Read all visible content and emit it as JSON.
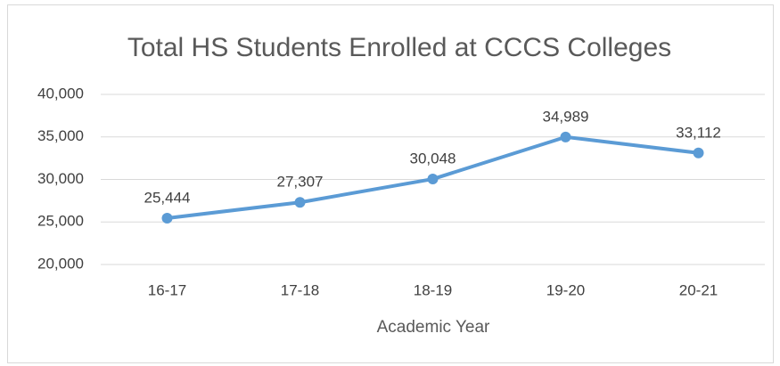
{
  "chart_data": {
    "type": "line",
    "title": "Total HS Students Enrolled at CCCS Colleges",
    "x_label": "Academic Year",
    "categories": [
      "16-17",
      "17-18",
      "18-19",
      "19-20",
      "20-21"
    ],
    "series": [
      {
        "name": "Total HS Students",
        "color": "#5b9bd5",
        "values": [
          25444,
          27307,
          30048,
          34989,
          33112
        ],
        "value_labels": [
          "25,444",
          "27,307",
          "30,048",
          "34,989",
          "33,112"
        ]
      }
    ],
    "ylim": [
      20000,
      40000
    ],
    "yticks": [
      {
        "value": 20000,
        "label": "20,000"
      },
      {
        "value": 25000,
        "label": "25,000"
      },
      {
        "value": 30000,
        "label": "30,000"
      },
      {
        "value": 35000,
        "label": "35,000"
      },
      {
        "value": 40000,
        "label": "40,000"
      }
    ],
    "grid": true
  }
}
